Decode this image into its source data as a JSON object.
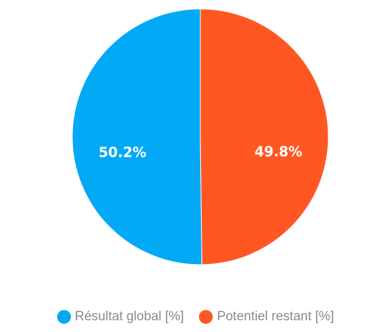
{
  "chart_data": {
    "type": "pie",
    "categories": [
      "Résultat global [%]",
      "Potentiel restant [%]"
    ],
    "values": [
      50.2,
      49.8
    ],
    "data_labels": [
      "50.2%",
      "49.8%"
    ],
    "colors": [
      "#03a9f4",
      "#ff5722"
    ],
    "legend_position": "bottom",
    "start_angle": "top, clockwise from the second slice"
  }
}
